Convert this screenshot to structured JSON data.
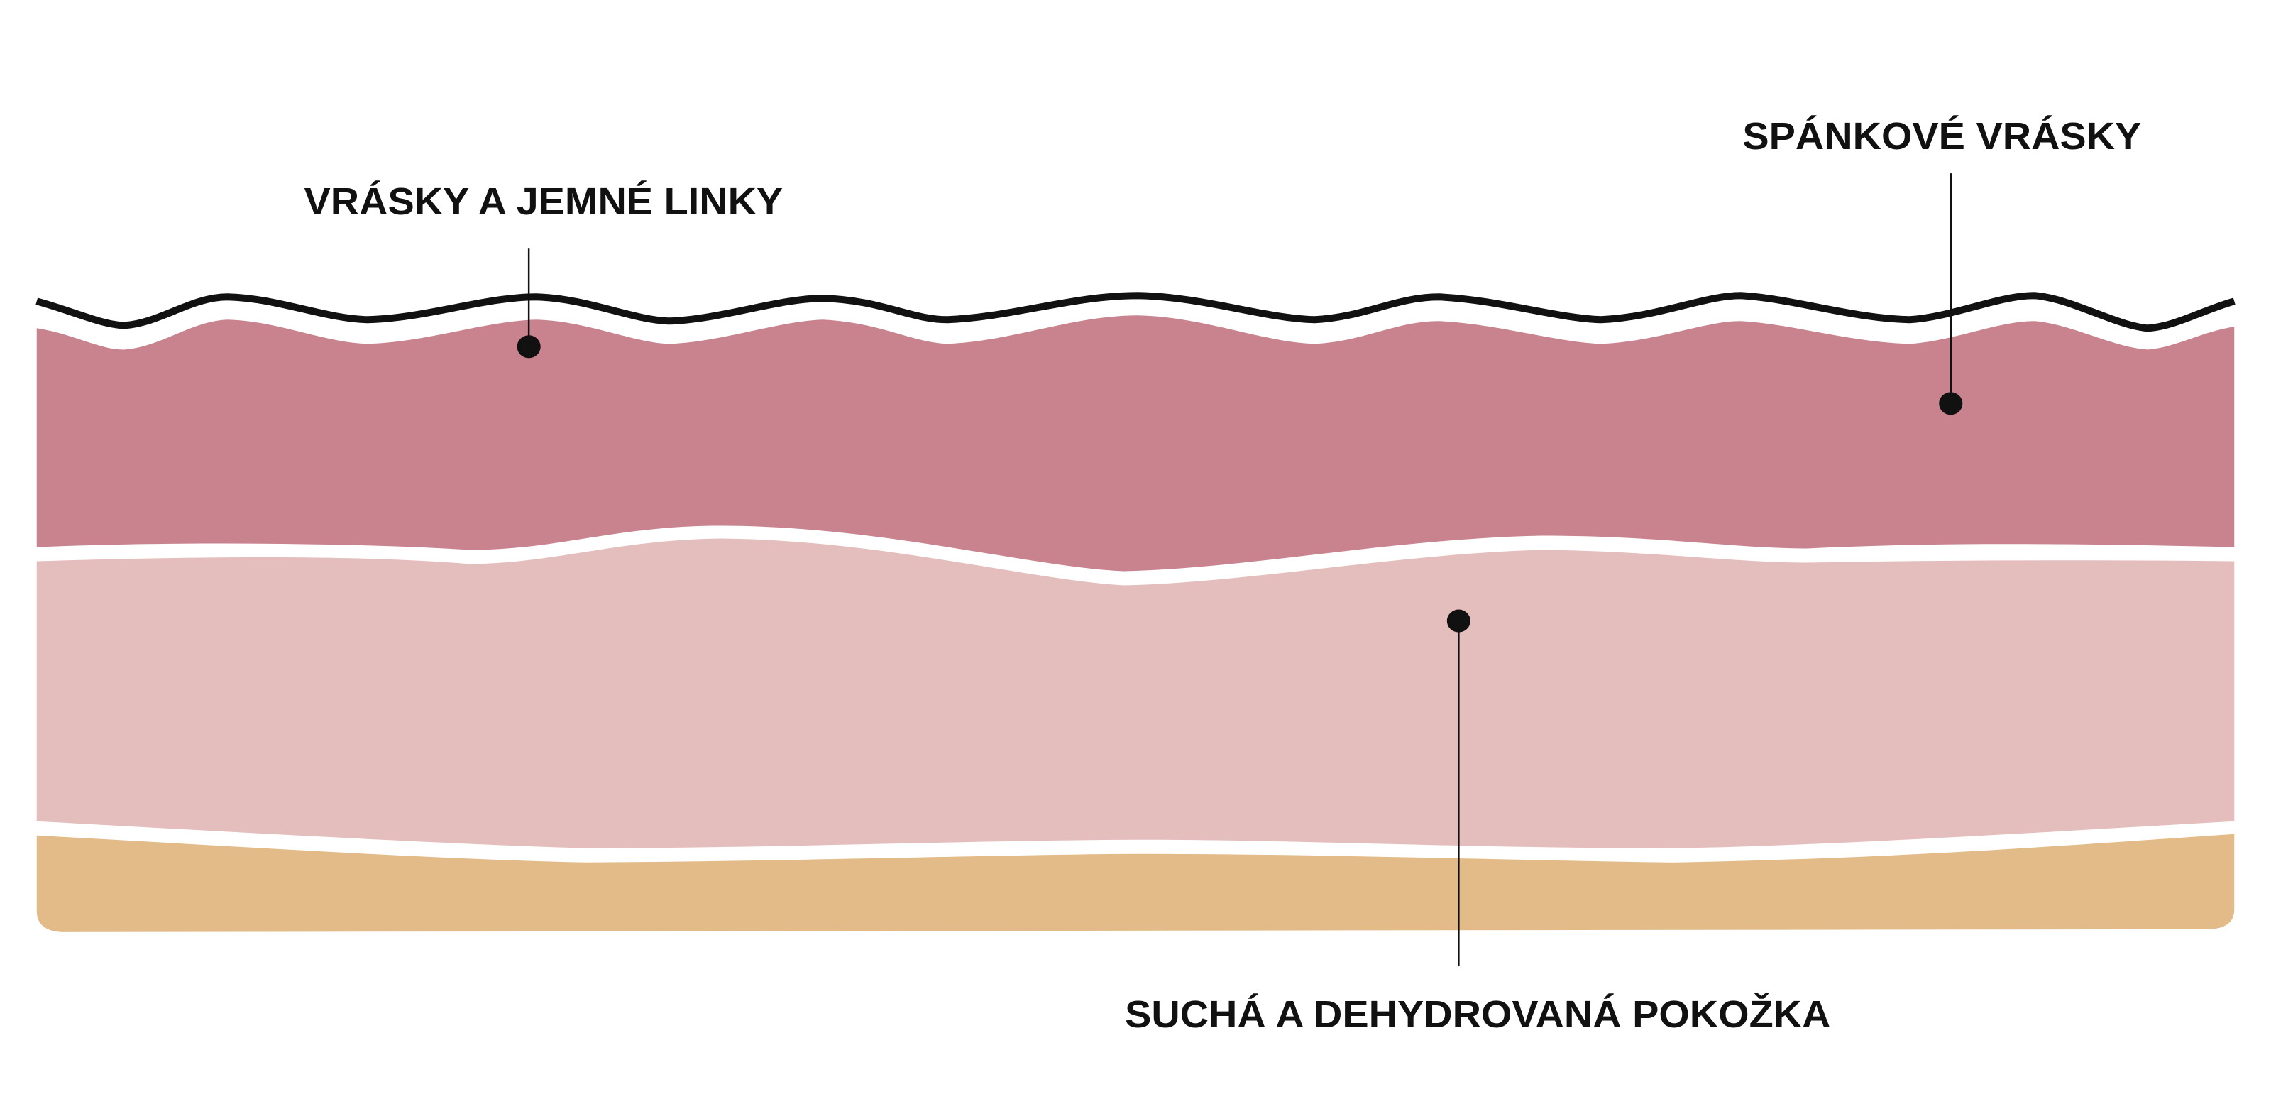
{
  "labels": [
    {
      "text": "VRÁSKY A JEMNÉ LINKY"
    },
    {
      "text": "SPÁNKOVÉ VRÁSKY"
    },
    {
      "text": "SUCHÁ A DEHYDROVANÁ POKOŽKA"
    }
  ]
}
